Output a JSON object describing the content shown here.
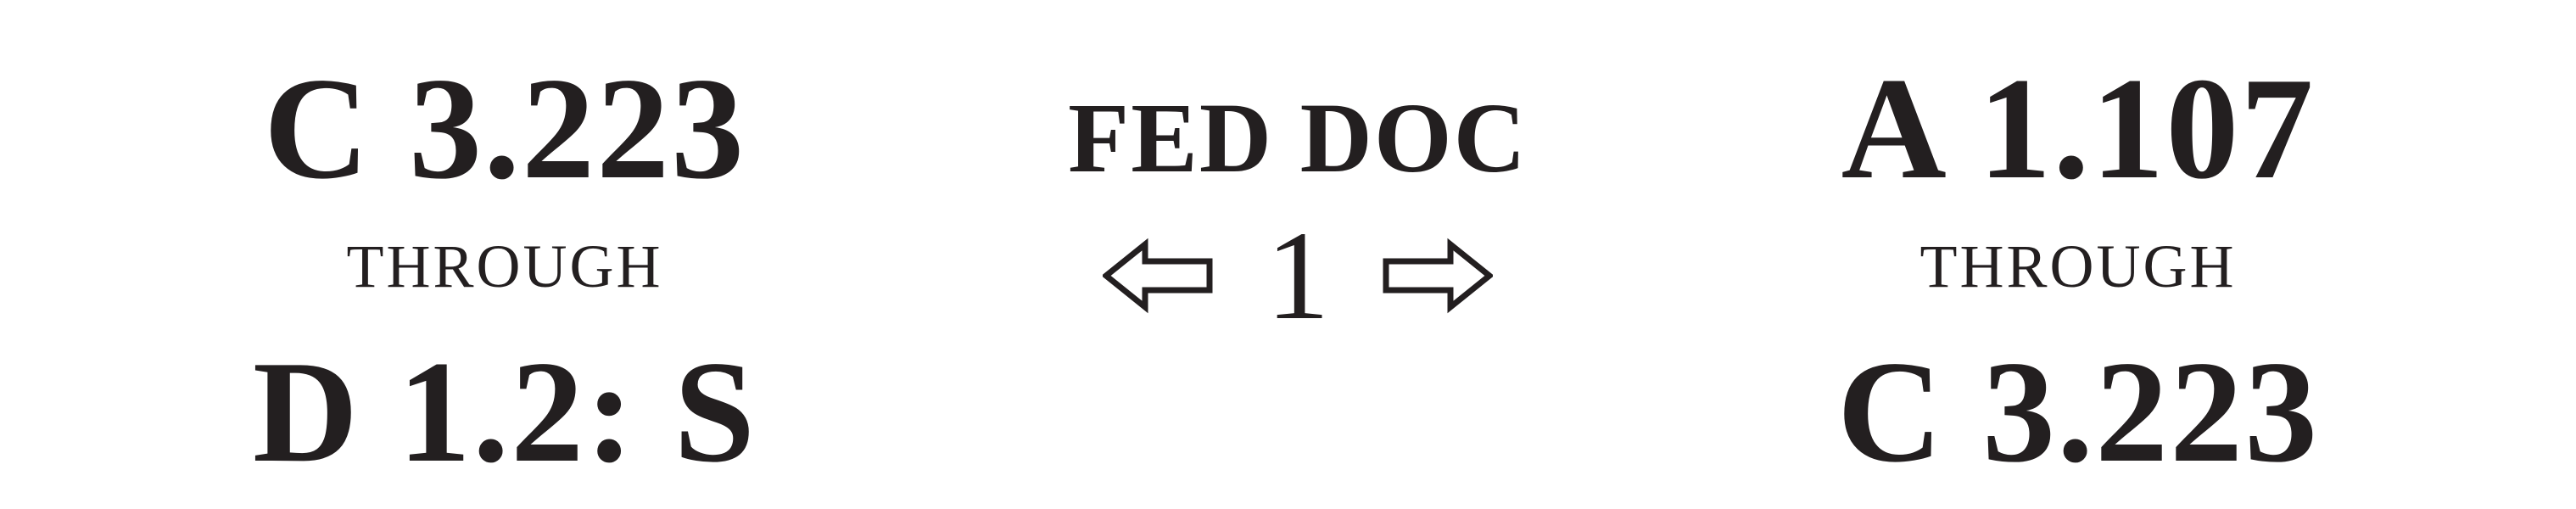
{
  "left": {
    "start": "C 3.223",
    "through": "THROUGH",
    "end": "D 1.2: S"
  },
  "center": {
    "title": "FED DOC",
    "number": "1",
    "prev_icon": "hollow-left-arrow",
    "next_icon": "hollow-right-arrow"
  },
  "right": {
    "start": "A 1.107",
    "through": "THROUGH",
    "end": "C 3.223"
  },
  "colors": {
    "ink": "#231f20",
    "background": "#ffffff"
  }
}
